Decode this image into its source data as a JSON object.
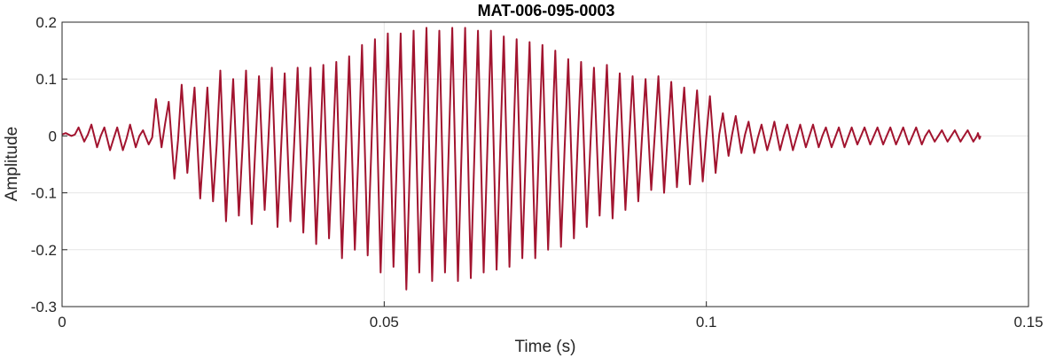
{
  "chart_data": {
    "type": "line",
    "title": "MAT-006-095-0003",
    "xlabel": "Time (s)",
    "ylabel": "Amplitude",
    "xlim": [
      0,
      0.15
    ],
    "ylim": [
      -0.3,
      0.2
    ],
    "xticks": [
      0,
      0.05,
      0.1,
      0.15
    ],
    "xtick_labels": [
      "0",
      "0.05",
      "0.1",
      "0.15"
    ],
    "yticks": [
      -0.3,
      -0.2,
      -0.1,
      0,
      0.1,
      0.2
    ],
    "ytick_labels": [
      "-0.3",
      "-0.2",
      "-0.1",
      "0",
      "0.1",
      "0.2"
    ],
    "grid": true,
    "line_color": "#A2142F",
    "series": [
      {
        "x": [
          0,
          0.002,
          0.004,
          0.006,
          0.008,
          0.01,
          0.012,
          0.014,
          0.016,
          0.018,
          0.02,
          0.022,
          0.024,
          0.026,
          0.028,
          0.03,
          0.032,
          0.034,
          0.036,
          0.038,
          0.04,
          0.042,
          0.044,
          0.046,
          0.048,
          0.05,
          0.052,
          0.054,
          0.056,
          0.058,
          0.06,
          0.062,
          0.064,
          0.066,
          0.068,
          0.07,
          0.072,
          0.074,
          0.076,
          0.078,
          0.08,
          0.082,
          0.084,
          0.086,
          0.088,
          0.09,
          0.092,
          0.094,
          0.096,
          0.098,
          0.1,
          0.102,
          0.104,
          0.106,
          0.108,
          0.11,
          0.112,
          0.114,
          0.116,
          0.118,
          0.12,
          0.122,
          0.124,
          0.126,
          0.128,
          0.13,
          0.132,
          0.134,
          0.136,
          0.138,
          0.14,
          0.142
        ],
        "max": [
          0.005,
          0.015,
          0.02,
          0.015,
          0.015,
          0.02,
          0.01,
          0.065,
          0.06,
          0.09,
          0.085,
          0.085,
          0.115,
          0.1,
          0.115,
          0.105,
          0.12,
          0.11,
          0.12,
          0.12,
          0.125,
          0.13,
          0.14,
          0.16,
          0.17,
          0.18,
          0.18,
          0.185,
          0.19,
          0.185,
          0.19,
          0.19,
          0.185,
          0.185,
          0.175,
          0.17,
          0.165,
          0.16,
          0.15,
          0.135,
          0.13,
          0.12,
          0.125,
          0.11,
          0.105,
          0.1,
          0.105,
          0.095,
          0.085,
          0.08,
          0.07,
          0.04,
          0.035,
          0.025,
          0.02,
          0.025,
          0.02,
          0.02,
          0.02,
          0.015,
          0.015,
          0.015,
          0.015,
          0.015,
          0.015,
          0.015,
          0.015,
          0.01,
          0.01,
          0.01,
          0.01,
          0.005
        ],
        "min": [
          0.0,
          -0.01,
          -0.02,
          -0.025,
          -0.025,
          -0.02,
          -0.015,
          -0.02,
          -0.075,
          -0.065,
          -0.11,
          -0.115,
          -0.15,
          -0.14,
          -0.155,
          -0.13,
          -0.16,
          -0.15,
          -0.17,
          -0.19,
          -0.18,
          -0.215,
          -0.2,
          -0.21,
          -0.24,
          -0.23,
          -0.27,
          -0.24,
          -0.255,
          -0.24,
          -0.255,
          -0.25,
          -0.24,
          -0.235,
          -0.23,
          -0.215,
          -0.215,
          -0.2,
          -0.195,
          -0.18,
          -0.16,
          -0.14,
          -0.145,
          -0.13,
          -0.115,
          -0.095,
          -0.1,
          -0.09,
          -0.085,
          -0.08,
          -0.065,
          -0.035,
          -0.03,
          -0.03,
          -0.025,
          -0.025,
          -0.025,
          -0.02,
          -0.02,
          -0.02,
          -0.02,
          -0.015,
          -0.015,
          -0.015,
          -0.015,
          -0.015,
          -0.015,
          -0.01,
          -0.01,
          -0.01,
          -0.01,
          -0.005
        ]
      }
    ]
  }
}
